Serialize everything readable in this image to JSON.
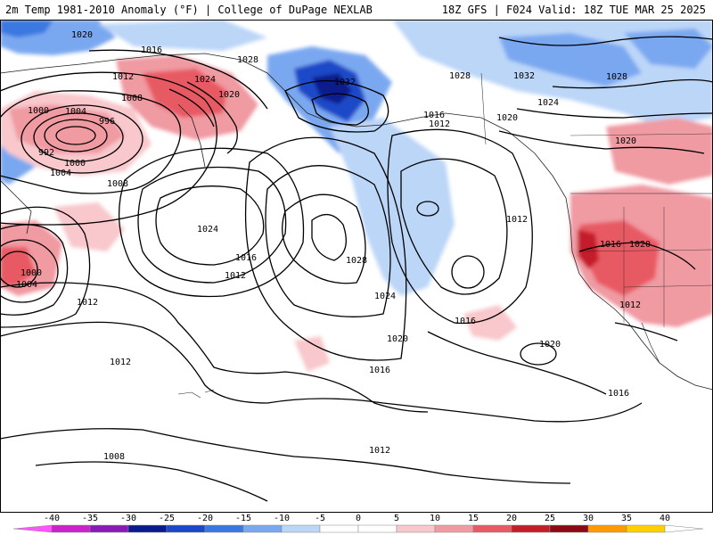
{
  "header": {
    "left": "2m Temp 1981-2010 Anomaly (°F) | College of DuPage NEXLAB",
    "right": "18Z GFS | F024 Valid: 18Z TUE MAR 25 2025"
  },
  "isobar_labels": [
    "1020",
    "1016",
    "1028",
    "1012",
    "1024",
    "1008",
    "1020",
    "1000",
    "1004",
    "996",
    "992",
    "1000",
    "1004",
    "1008",
    "1032",
    "1028",
    "1032",
    "1028",
    "1016",
    "1020",
    "1012",
    "1024",
    "1020",
    "1024",
    "1028",
    "1012",
    "1016",
    "1012",
    "1016",
    "1020",
    "1000",
    "1004",
    "1012",
    "1024",
    "1016",
    "1020",
    "1012",
    "1012",
    "1020",
    "1016",
    "1016",
    "1012",
    "1008"
  ],
  "colorbar": {
    "labels": [
      "-40",
      "-35",
      "-30",
      "-25",
      "-20",
      "-15",
      "-10",
      "-5",
      "0",
      "5",
      "10",
      "15",
      "20",
      "25",
      "30",
      "35",
      "40"
    ],
    "colors": [
      "#ff55ff",
      "#cc22cc",
      "#8a1ab8",
      "#0b1a8c",
      "#1b48c8",
      "#3a78e0",
      "#7aa8f0",
      "#bcd6f8",
      "#ffffff",
      "#ffffff",
      "#f8c8cc",
      "#f09aa2",
      "#e85a64",
      "#c41e2a",
      "#8c0a14",
      "#ff9a00",
      "#ffd000",
      "#ffffff"
    ]
  }
}
